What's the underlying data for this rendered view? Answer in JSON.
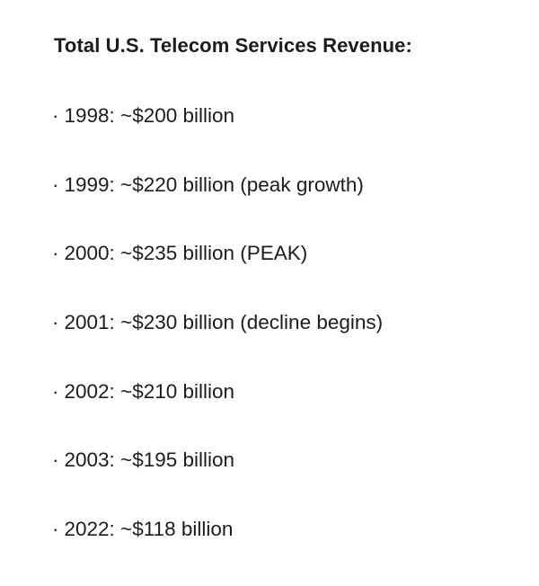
{
  "document": {
    "title": "Total U.S. Telecom Services Revenue:",
    "bullet": "·",
    "items": [
      "1998: ~$200 billion",
      "1999: ~$220 billion (peak growth)",
      "2000: ~$235 billion (PEAK)",
      "2001: ~$230 billion (decline begins)",
      "2002: ~$210 billion",
      "2003: ~$195 billion",
      "2022: ~$118 billion"
    ]
  }
}
